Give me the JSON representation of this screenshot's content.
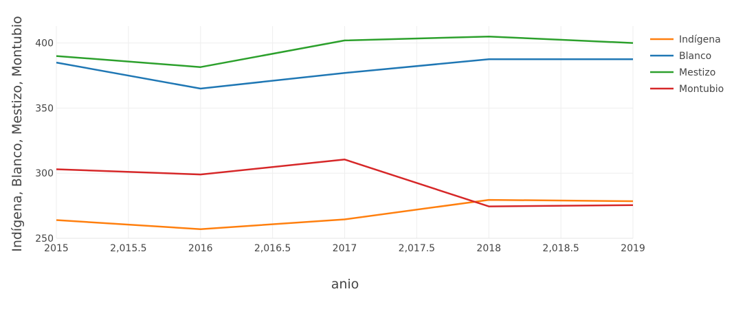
{
  "chart_data": {
    "type": "line",
    "title": "",
    "xlabel": "anio",
    "ylabel": "Indígena, Blanco, Mestizo, Montubio",
    "x": [
      2015,
      2016,
      2017,
      2018,
      2019
    ],
    "xlim": [
      2015,
      2019
    ],
    "ylim": [
      250,
      413
    ],
    "x_ticks": [
      2015,
      2015.5,
      2016,
      2016.5,
      2017,
      2017.5,
      2018,
      2018.5,
      2019
    ],
    "x_tick_labels": [
      "2015",
      "2,015.5",
      "2016",
      "2,016.5",
      "2017",
      "2,017.5",
      "2018",
      "2,018.5",
      "2019"
    ],
    "y_ticks": [
      250,
      300,
      350,
      400
    ],
    "y_tick_labels": [
      "250",
      "300",
      "350",
      "400"
    ],
    "grid": true,
    "legend_position": "top-right",
    "series": [
      {
        "name": "Indígena",
        "color": "#ff7f0e",
        "values": [
          264,
          257,
          264.5,
          279.5,
          278.5
        ]
      },
      {
        "name": "Blanco",
        "color": "#1f77b4",
        "values": [
          385,
          365,
          377,
          387.5,
          387.5
        ]
      },
      {
        "name": "Mestizo",
        "color": "#2ca02c",
        "values": [
          390,
          381.5,
          402,
          405,
          400
        ]
      },
      {
        "name": "Montubio",
        "color": "#d62728",
        "values": [
          303,
          299,
          310.5,
          274.5,
          275.5
        ]
      }
    ]
  }
}
